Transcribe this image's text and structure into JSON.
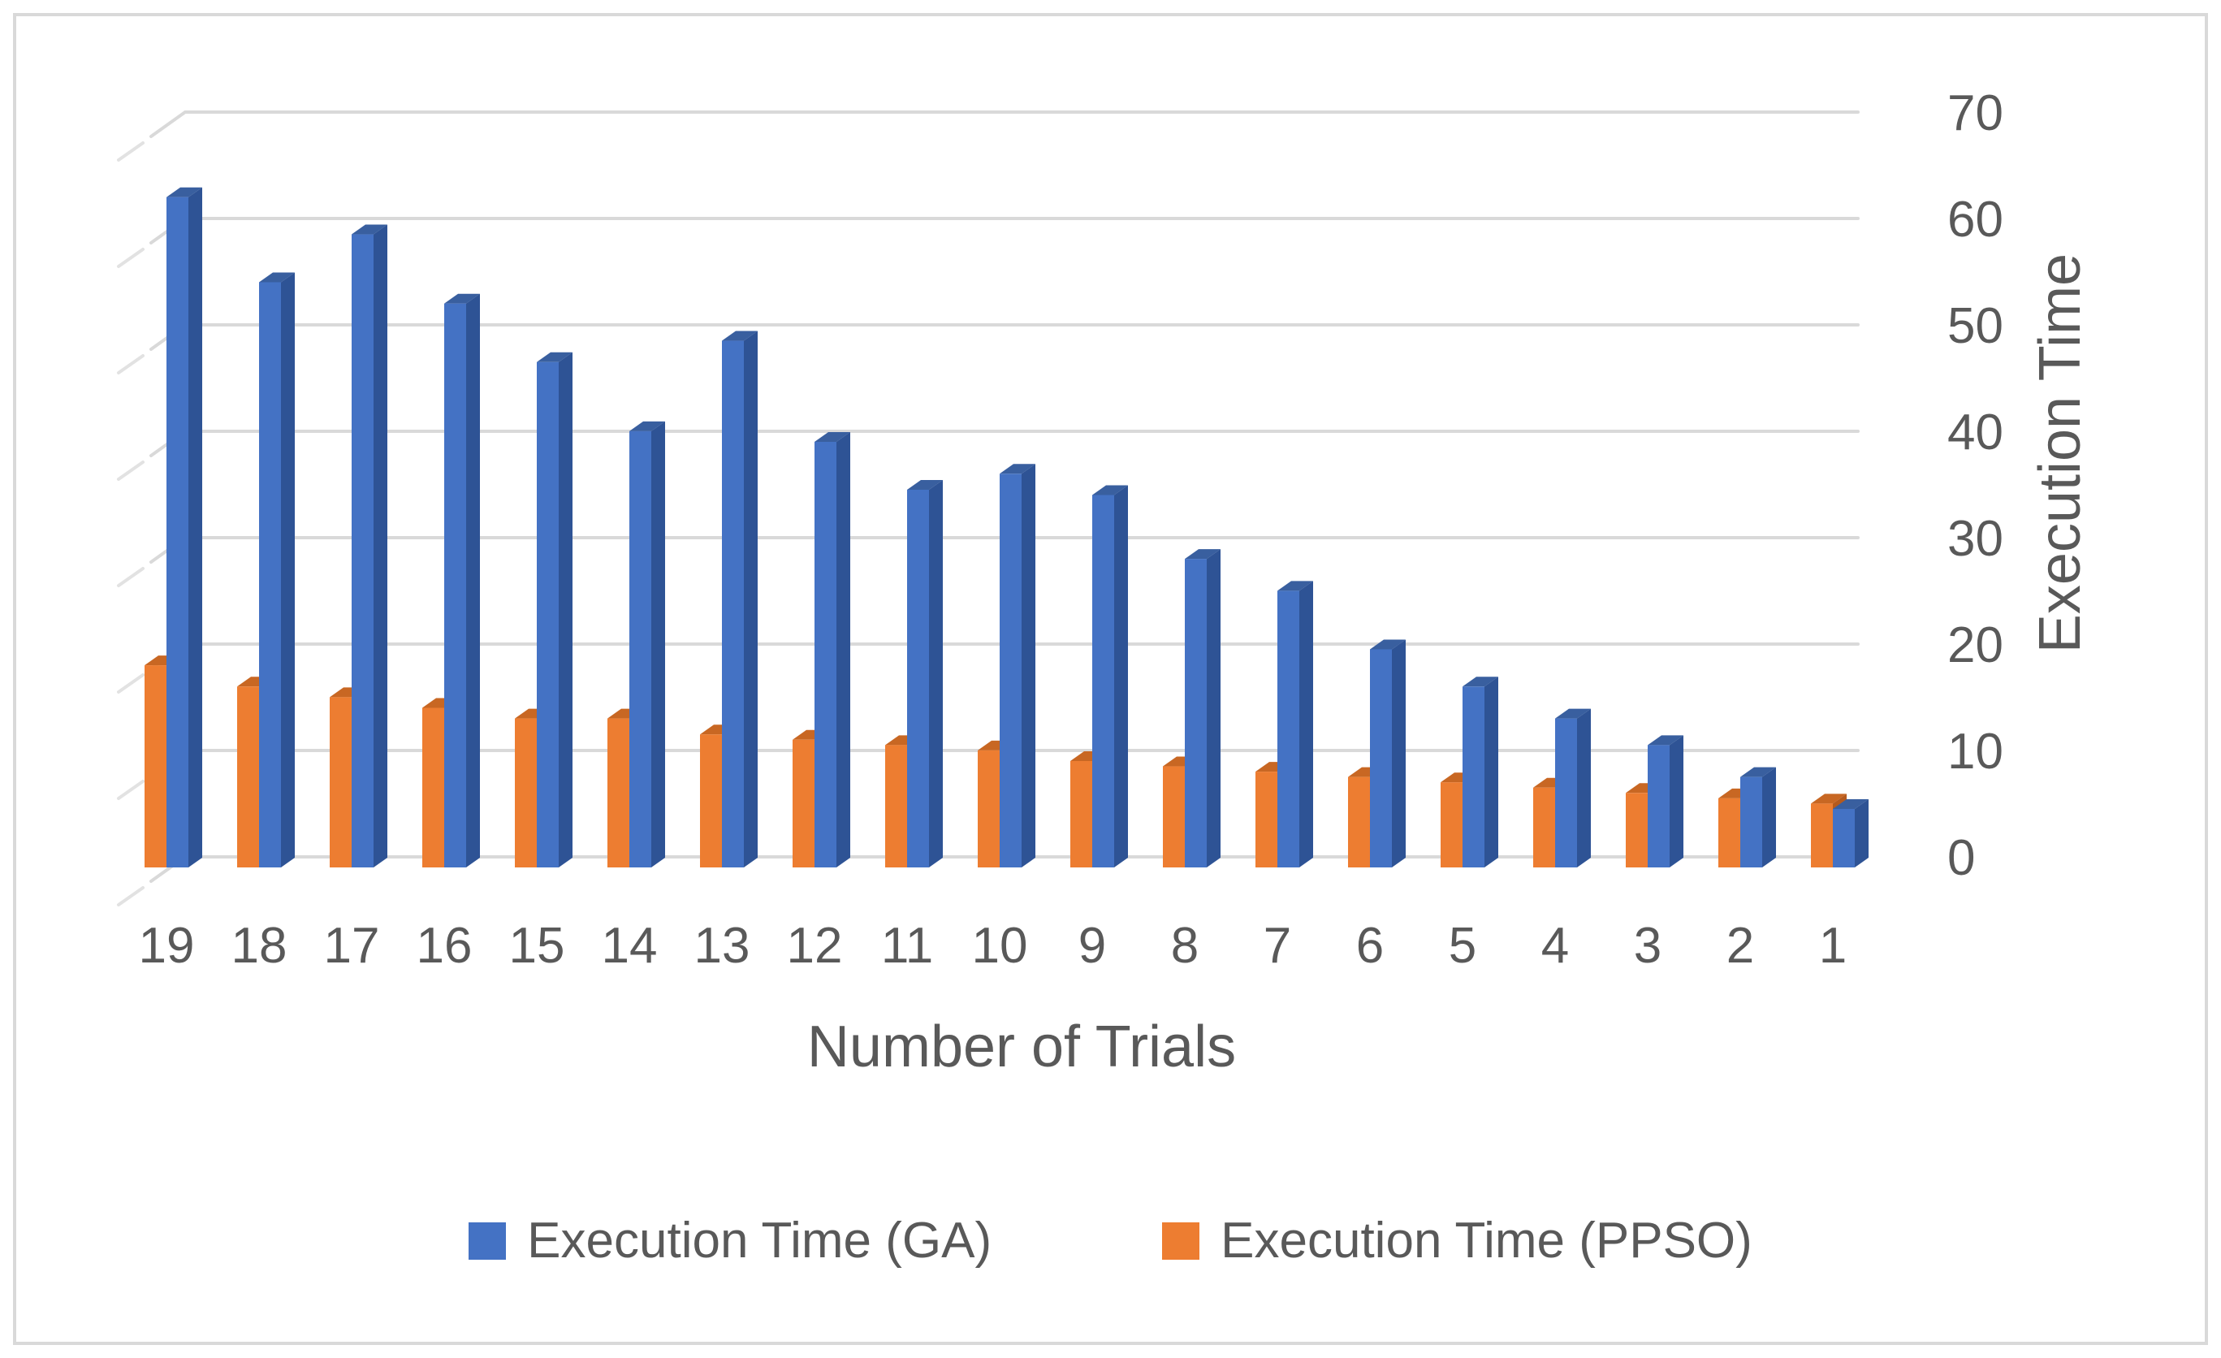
{
  "chart_data": {
    "type": "bar",
    "style": "3d-clustered-column",
    "title": "",
    "xlabel": "Number of Trials",
    "ylabel": "Execution Time",
    "categories": [
      "19",
      "18",
      "17",
      "16",
      "15",
      "14",
      "13",
      "12",
      "11",
      "10",
      "9",
      "8",
      "7",
      "6",
      "5",
      "4",
      "3",
      "2",
      "1"
    ],
    "series": [
      {
        "name": "Execution Time (GA)",
        "color": "#4472C4",
        "side_color": "#2E5395",
        "top_color": "#395F9F",
        "values": [
          63,
          55,
          59.5,
          53,
          47.5,
          41,
          49.5,
          40,
          35.5,
          37,
          35,
          29,
          26,
          20.5,
          17,
          14,
          11.5,
          8.5,
          5.5
        ]
      },
      {
        "name": "Execution Time (PPSO)",
        "color": "#ED7D31",
        "side_color": "#B55A1D",
        "top_color": "#C86723",
        "values": [
          19,
          17,
          16,
          15,
          14,
          14,
          12.5,
          12,
          11.5,
          11,
          10,
          9.5,
          9,
          8.5,
          8,
          7.5,
          7,
          6.5,
          6
        ]
      }
    ],
    "ylim": [
      0,
      70
    ],
    "yticks": [
      0,
      10,
      20,
      30,
      40,
      50,
      60,
      70
    ],
    "grid": true,
    "gridline_color": "#D9D9D9",
    "text_color": "#595959",
    "legend_position": "bottom"
  },
  "legend": {
    "items": [
      {
        "label": "Execution Time (GA)",
        "color": "#4472C4"
      },
      {
        "label": "Execution Time (PPSO)",
        "color": "#ED7D31"
      }
    ]
  }
}
